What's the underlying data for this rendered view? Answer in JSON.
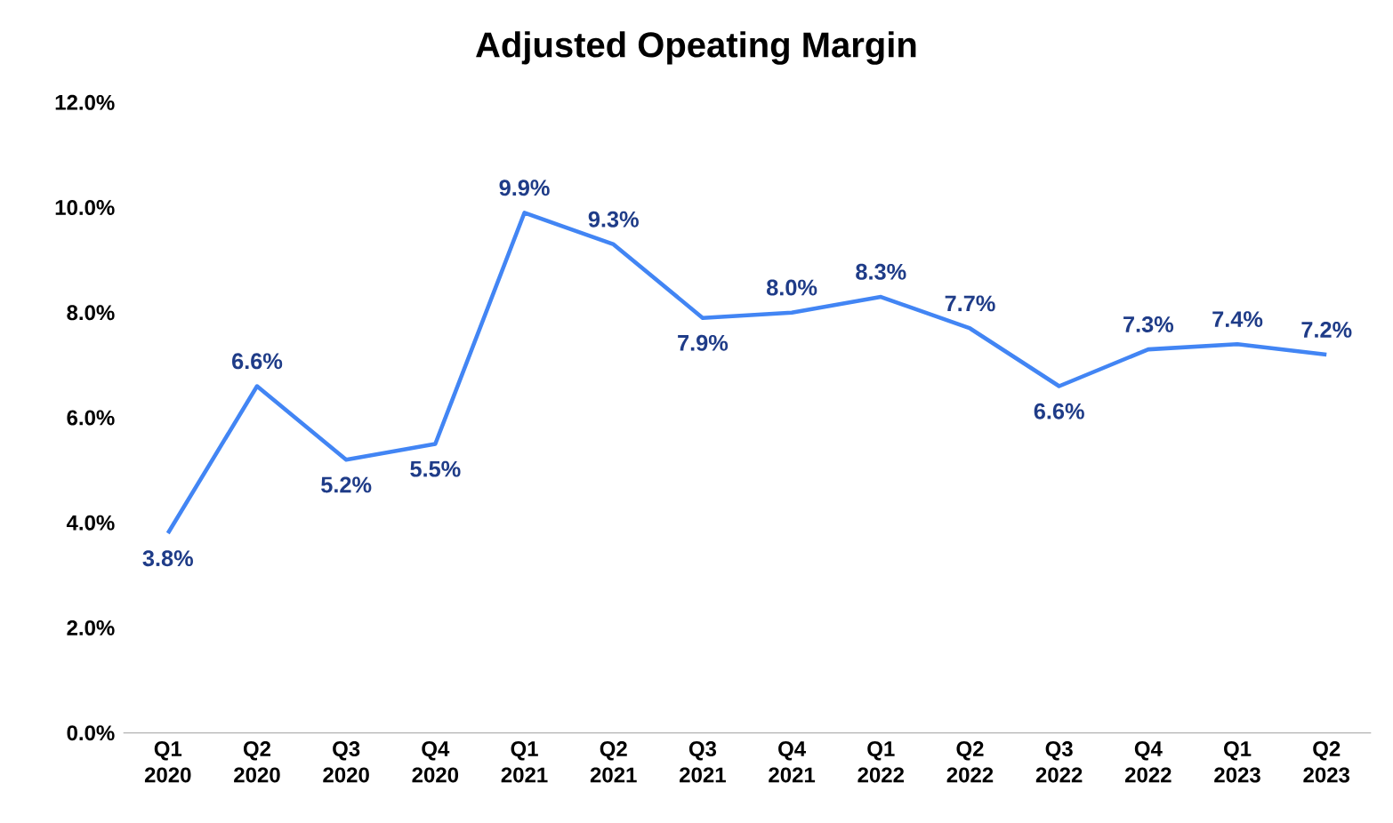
{
  "chart_data": {
    "type": "line",
    "title": "Adjusted Opeating Margin",
    "categories": [
      "Q1 2020",
      "Q2 2020",
      "Q3 2020",
      "Q4 2020",
      "Q1 2021",
      "Q2 2021",
      "Q3 2021",
      "Q4 2021",
      "Q1 2022",
      "Q2 2022",
      "Q3 2022",
      "Q4 2022",
      "Q1 2023",
      "Q2 2023"
    ],
    "values": [
      3.8,
      6.6,
      5.2,
      5.5,
      9.9,
      9.3,
      7.9,
      8.0,
      8.3,
      7.7,
      6.6,
      7.3,
      7.4,
      7.2
    ],
    "value_labels": [
      "3.8%",
      "6.6%",
      "5.2%",
      "5.5%",
      "9.9%",
      "9.3%",
      "7.9%",
      "8.0%",
      "8.3%",
      "7.7%",
      "6.6%",
      "7.3%",
      "7.4%",
      "7.2%"
    ],
    "color": "#4285f4",
    "ylim": [
      0,
      12
    ],
    "yticks": [
      {
        "value": 0,
        "label": "0.0%"
      },
      {
        "value": 2,
        "label": "2.0%"
      },
      {
        "value": 4,
        "label": "4.0%"
      },
      {
        "value": 6,
        "label": "6.0%"
      },
      {
        "value": 8,
        "label": "8.0%"
      },
      {
        "value": 10,
        "label": "10.0%"
      },
      {
        "value": 12,
        "label": "12.0%"
      }
    ],
    "grid": false,
    "marker": "none",
    "line_style": "solid"
  }
}
